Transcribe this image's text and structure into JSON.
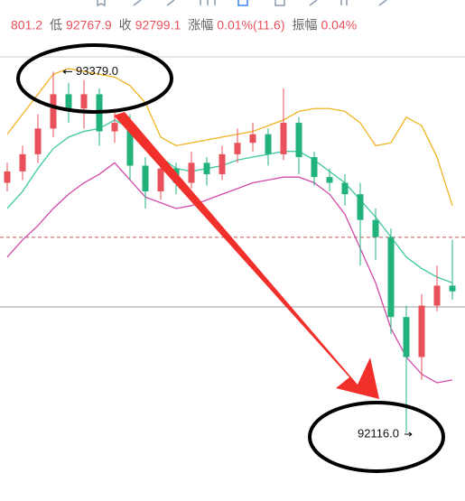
{
  "chart_data": {
    "type": "candlestick",
    "header": [
      {
        "label": null,
        "text": "801.2"
      },
      {
        "label": "低",
        "text": "92767.9"
      },
      {
        "label": "收",
        "text": "92799.1"
      },
      {
        "label": "涨幅",
        "text": "0.01%(11.6)"
      },
      {
        "label": "振幅",
        "text": "0.04%"
      }
    ],
    "ylim": [
      91876,
      93630
    ],
    "up_color": "#e8515a",
    "down_color": "#22b27c",
    "open": [
      92990,
      93030,
      93090,
      93180,
      93300,
      93250,
      93300,
      93170,
      93200,
      93050,
      92960,
      93040,
      92990,
      93060,
      93020,
      93090,
      93130,
      93160,
      93090,
      93200,
      93080,
      93010,
      92990,
      92950,
      92860,
      92800,
      92520,
      92380,
      92560,
      92630
    ],
    "high": [
      93060,
      93120,
      93230,
      93379,
      93340,
      93350,
      93320,
      93250,
      93230,
      93080,
      93090,
      93060,
      93100,
      93080,
      93120,
      93180,
      93200,
      93180,
      93320,
      93220,
      93100,
      93040,
      93020,
      92990,
      92900,
      92830,
      92560,
      92600,
      92700,
      92790
    ],
    "low": [
      92960,
      93000,
      93060,
      93150,
      93200,
      93180,
      93120,
      93130,
      93000,
      92900,
      92930,
      92950,
      92970,
      92980,
      93000,
      93060,
      93100,
      93050,
      93070,
      93020,
      92980,
      92960,
      92910,
      92700,
      92720,
      92460,
      92116,
      92300,
      92540,
      92580
    ],
    "close": [
      93030,
      93090,
      93180,
      93300,
      93250,
      93300,
      93170,
      93200,
      93050,
      92960,
      93040,
      92990,
      93060,
      93020,
      93090,
      93130,
      93160,
      93090,
      93200,
      93080,
      93010,
      92990,
      92950,
      92860,
      92800,
      92520,
      92380,
      92560,
      92630,
      92610
    ],
    "bands": [
      {
        "color": "#f0b323",
        "values": [
          93160,
          93230,
          93300,
          93370,
          93390,
          93380,
          93370,
          93360,
          93330,
          93270,
          93150,
          93120,
          93130,
          93140,
          93150,
          93160,
          93170,
          93190,
          93210,
          93240,
          93250,
          93250,
          93240,
          93200,
          93120,
          93130,
          93220,
          93190,
          93080,
          92910
        ]
      },
      {
        "color": "#3cc9a0",
        "values": [
          92900,
          92960,
          93040,
          93110,
          93150,
          93170,
          93180,
          93210,
          93180,
          93120,
          93080,
          93040,
          93030,
          93040,
          93050,
          93070,
          93080,
          93090,
          93100,
          93100,
          93070,
          93030,
          92990,
          92930,
          92870,
          92800,
          92730,
          92690,
          92660,
          92640
        ]
      },
      {
        "color": "#d34aa8",
        "values": [
          92730,
          92790,
          92840,
          92900,
          92950,
          92990,
          93020,
          93060,
          93000,
          92940,
          92920,
          92900,
          92910,
          92930,
          92950,
          92970,
          92990,
          93000,
          93010,
          93010,
          92990,
          92950,
          92880,
          92760,
          92640,
          92480,
          92380,
          92320,
          92290,
          92300
        ]
      }
    ],
    "price_line": 92799.1,
    "annotations": [
      {
        "value": 93379,
        "label": "93379.0"
      },
      {
        "value": 92116,
        "label": "92116.0"
      }
    ]
  }
}
